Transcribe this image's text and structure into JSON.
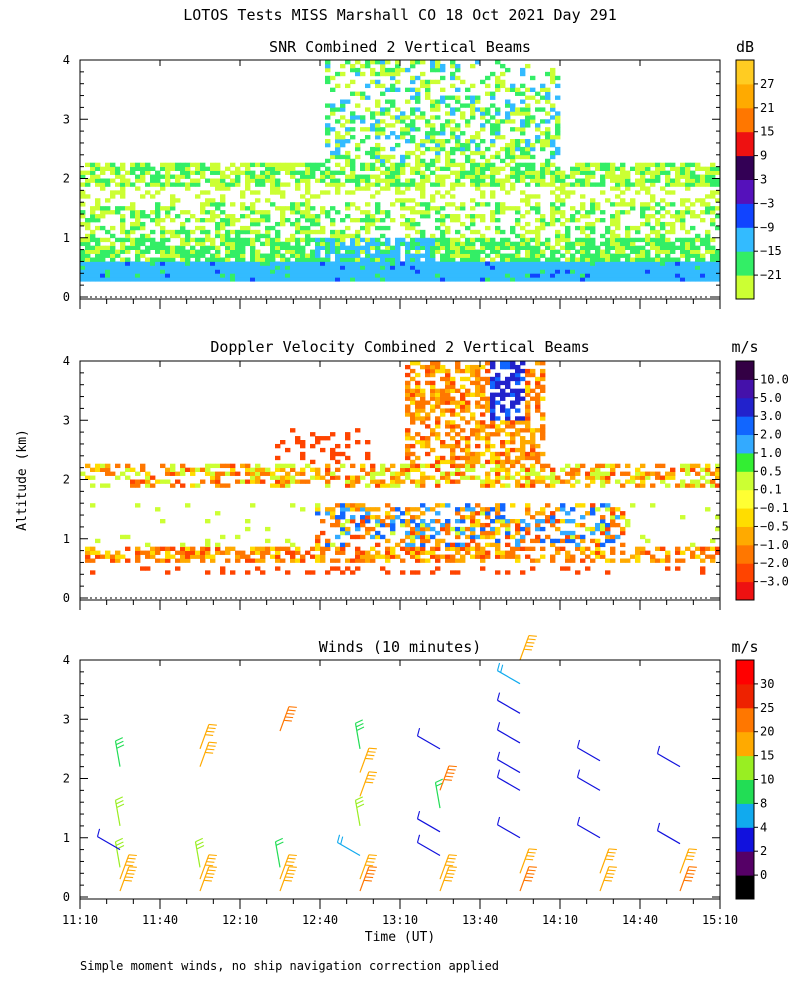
{
  "title": "LOTOS Tests MISS Marshall CO  18 Oct 2021 Day 291",
  "ylabel": "Altitude (km)",
  "footnote": "Simple moment winds, no ship navigation correction applied",
  "chart_data": [
    {
      "type": "heatmap",
      "title": "SNR Combined 2 Vertical Beams",
      "units": "dB",
      "xlim": [
        "11:10",
        "15:10"
      ],
      "ylim": [
        0,
        4
      ],
      "yticks": [
        "0",
        "1",
        "2",
        "3",
        "4"
      ],
      "colorbar_ticks": [
        "27",
        "21",
        "15",
        "9",
        "3",
        "−3",
        "−9",
        "−15",
        "−21"
      ],
      "colorbar_colors": [
        "#ccff33",
        "#33ee66",
        "#33bbff",
        "#1144ff",
        "#5511bb",
        "#330055",
        "#ee1111",
        "#ff7700",
        "#ffaa00",
        "#ffcc22"
      ],
      "layers": [
        {
          "alt_km": [
            0.3,
            0.6
          ],
          "level_db": -9,
          "desc": "continuous near-surface layer"
        },
        {
          "alt_km": [
            0.6,
            1.5
          ],
          "level_db": -15,
          "desc": "boundary layer echoes"
        },
        {
          "alt_km": [
            1.9,
            2.3
          ],
          "level_db": -18,
          "desc": "elevated layer near 2 km"
        },
        {
          "alt_km": [
            2.3,
            4.0
          ],
          "time": [
            "12:40",
            "13:50"
          ],
          "level_db": -12,
          "desc": "deep echoes midday"
        }
      ]
    },
    {
      "type": "heatmap",
      "title": "Doppler Velocity Combined 2 Vertical Beams",
      "units": "m/s",
      "xlim": [
        "11:10",
        "15:10"
      ],
      "ylim": [
        0,
        4
      ],
      "yticks": [
        "0",
        "1",
        "2",
        "3",
        "4"
      ],
      "colorbar_ticks": [
        "10.0",
        "5.0",
        "3.0",
        "2.0",
        "1.0",
        "0.5",
        "0.1",
        "−0.1",
        "−0.5",
        "−1.0",
        "−2.0",
        "−3.0"
      ],
      "colorbar_colors": [
        "#ee1111",
        "#ff4400",
        "#ff7700",
        "#ffaa00",
        "#ffdd00",
        "#ffff33",
        "#ccff33",
        "#33ee33",
        "#33aaff",
        "#1166ff",
        "#2222cc",
        "#4411aa",
        "#330044"
      ],
      "layers": [
        {
          "alt_km": [
            0.6,
            0.9
          ],
          "level_ms": -1.0,
          "desc": "sinking near boundary layer top"
        },
        {
          "alt_km": [
            1.9,
            2.3
          ],
          "level_ms": -0.5,
          "desc": "layer near 2 km"
        },
        {
          "alt_km": [
            2.0,
            4.0
          ],
          "time": [
            "13:20",
            "14:00"
          ],
          "level_ms": -1.0,
          "desc": "descending deep echoes"
        },
        {
          "alt_km": [
            3.0,
            4.0
          ],
          "time": [
            "13:40",
            "13:50"
          ],
          "level_ms": 3.0,
          "desc": "upward core"
        }
      ]
    },
    {
      "type": "scatter",
      "title": "Winds (10 minutes)",
      "units": "m/s",
      "xlabel": "Time (UT)",
      "xticks": [
        "11:10",
        "11:40",
        "12:10",
        "12:40",
        "13:10",
        "13:40",
        "14:10",
        "14:40",
        "15:10"
      ],
      "ylim": [
        0,
        4
      ],
      "yticks": [
        "0",
        "1",
        "2",
        "3",
        "4"
      ],
      "colorbar_ticks": [
        "30",
        "25",
        "20",
        "15",
        "10",
        "8",
        "4",
        "2",
        "0"
      ],
      "colorbar_colors": [
        "#000000",
        "#550066",
        "#1111dd",
        "#11aaee",
        "#22dd55",
        "#99ee22",
        "#ffaa00",
        "#ff7700",
        "#ee2200",
        "#ff0000"
      ],
      "profiles": [
        {
          "time": "11:25",
          "alt_km": [
            0.1,
            0.3,
            0.5,
            0.8,
            1.2,
            2.2
          ],
          "speed_ms": [
            24,
            22,
            17,
            7,
            17,
            14
          ]
        },
        {
          "time": "11:55",
          "alt_km": [
            0.1,
            0.3,
            0.5,
            2.2,
            2.5
          ],
          "speed_ms": [
            23,
            22,
            17,
            21,
            22
          ]
        },
        {
          "time": "12:25",
          "alt_km": [
            0.1,
            0.3,
            0.5,
            2.8
          ],
          "speed_ms": [
            24,
            22,
            12,
            26
          ]
        },
        {
          "time": "12:55",
          "alt_km": [
            0.1,
            0.3,
            0.7,
            1.2,
            1.7,
            2.1,
            2.5
          ],
          "speed_ms": [
            25,
            22,
            9,
            17,
            20,
            21,
            14
          ]
        },
        {
          "time": "13:25",
          "alt_km": [
            0.1,
            0.3,
            0.7,
            1.1,
            1.5,
            1.8,
            2.5
          ],
          "speed_ms": [
            24,
            22,
            5,
            6,
            12,
            25,
            4
          ]
        },
        {
          "time": "13:55",
          "alt_km": [
            0.1,
            0.4,
            1.0,
            1.8,
            2.1,
            2.6,
            3.1,
            3.6,
            4.0
          ],
          "speed_ms": [
            25,
            22,
            6,
            5,
            4,
            5,
            6,
            9,
            24
          ]
        },
        {
          "time": "14:25",
          "alt_km": [
            0.1,
            0.4,
            1.0,
            1.8,
            2.3
          ],
          "speed_ms": [
            24,
            22,
            7,
            5,
            5
          ]
        },
        {
          "time": "14:55",
          "alt_km": [
            0.1,
            0.4,
            0.9,
            2.2
          ],
          "speed_ms": [
            25,
            22,
            6,
            4
          ]
        }
      ]
    }
  ]
}
